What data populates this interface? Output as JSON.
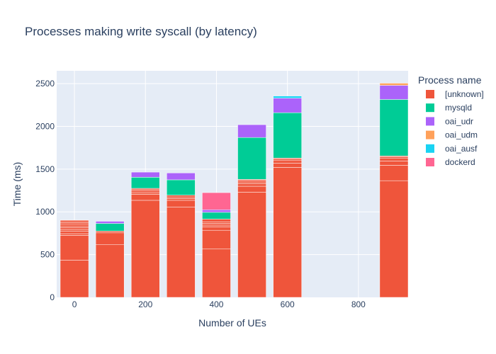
{
  "chart_data": {
    "type": "bar",
    "stacked": true,
    "title": "Processes making write syscall (by latency)",
    "xlabel": "Number of UEs",
    "ylabel": "Time (ms)",
    "xlim": [
      -50,
      940
    ],
    "ylim": [
      0,
      2650
    ],
    "xticks": [
      0,
      200,
      400,
      600,
      800
    ],
    "yticks": [
      0,
      500,
      1000,
      1500,
      2000,
      2500
    ],
    "bar_width": 80,
    "grid": true,
    "legend": {
      "title": "Process name",
      "position": "right"
    },
    "x": [
      0,
      100,
      200,
      300,
      400,
      500,
      600,
      900
    ],
    "series": [
      {
        "name": "[unknown]",
        "color": "#ef553b",
        "segments": [
          [
            435,
            290,
            20,
            30,
            20,
            20,
            20,
            20,
            20,
            20,
            10
          ],
          [
            615,
            140,
            20
          ],
          [
            1135,
            70,
            20,
            20,
            20,
            10
          ],
          [
            1055,
            80,
            20,
            20,
            20
          ],
          [
            565,
            220,
            40,
            20,
            20,
            20,
            30
          ],
          [
            1230,
            70,
            30,
            20,
            20,
            10
          ],
          [
            1520,
            50,
            30,
            20,
            10
          ],
          [
            1365,
            180,
            50,
            30,
            20,
            10
          ]
        ]
      },
      {
        "name": "mysqld",
        "color": "#00cc96",
        "values": [
          0,
          90,
          130,
          180,
          80,
          490,
          530,
          660
        ]
      },
      {
        "name": "oai_udr",
        "color": "#ab63fa",
        "values": [
          0,
          25,
          60,
          80,
          30,
          150,
          170,
          165
        ]
      },
      {
        "name": "oai_udm",
        "color": "#ffa15a",
        "values": [
          0,
          0,
          0,
          0,
          0,
          0,
          0,
          25
        ]
      },
      {
        "name": "oai_ausf",
        "color": "#19d3f3",
        "values": [
          0,
          0,
          0,
          0,
          0,
          0,
          25,
          0
        ]
      },
      {
        "name": "dockerd",
        "color": "#ff6692",
        "values": [
          0,
          0,
          0,
          0,
          200,
          0,
          0,
          0
        ]
      }
    ]
  }
}
